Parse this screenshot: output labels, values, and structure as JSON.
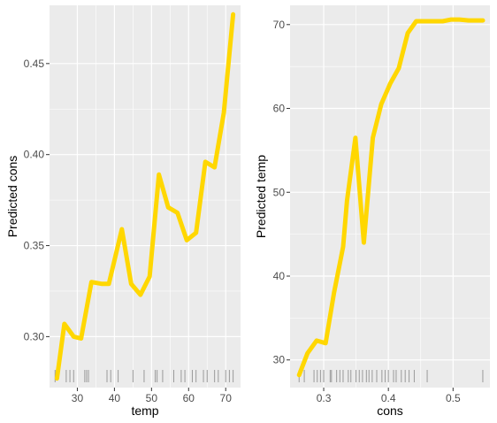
{
  "chart_data": [
    {
      "type": "line",
      "xlabel": "temp",
      "ylabel": "Predicted cons",
      "xlim": [
        22.5,
        74
      ],
      "ylim": [
        0.272,
        0.482
      ],
      "x_ticks": [
        30,
        40,
        50,
        60,
        70
      ],
      "y_ticks": [
        0.3,
        0.35,
        0.4,
        0.45
      ],
      "y_tick_labels": [
        "0.30",
        "0.35",
        "0.40",
        "0.45"
      ],
      "grid": true,
      "line_color": "#FFD700",
      "panel_background": "#EBEBEB",
      "rug_color": "#9a9a9a",
      "series": [
        {
          "x": [
            24.5,
            26.5,
            29,
            31,
            33.8,
            36.5,
            38.5,
            42,
            44.5,
            47,
            49.5,
            52,
            54.5,
            57,
            59.5,
            62,
            64.5,
            67,
            69.5,
            72
          ],
          "y": [
            0.277,
            0.307,
            0.3,
            0.299,
            0.33,
            0.329,
            0.329,
            0.359,
            0.329,
            0.323,
            0.333,
            0.389,
            0.371,
            0.368,
            0.353,
            0.357,
            0.396,
            0.393,
            0.423,
            0.477
          ]
        }
      ],
      "rug": [
        24,
        27,
        28,
        29,
        32,
        32.5,
        33,
        38,
        39,
        41,
        45,
        48,
        51,
        51.5,
        53,
        56,
        58,
        59,
        61,
        62,
        64,
        65,
        67,
        68,
        70,
        71,
        72
      ]
    },
    {
      "type": "line",
      "xlabel": "cons",
      "ylabel": "Predicted temp",
      "xlim": [
        0.248,
        0.557
      ],
      "ylim": [
        26.7,
        72.3
      ],
      "x_ticks": [
        0.3,
        0.4,
        0.5
      ],
      "x_tick_labels": [
        "0.3",
        "0.4",
        "0.5"
      ],
      "y_ticks": [
        30,
        40,
        50,
        60,
        70
      ],
      "grid": true,
      "line_color": "#FFD700",
      "panel_background": "#EBEBEB",
      "rug_color": "#9a9a9a",
      "series": [
        {
          "x": [
            0.262,
            0.275,
            0.289,
            0.303,
            0.316,
            0.33,
            0.336,
            0.349,
            0.362,
            0.376,
            0.389,
            0.403,
            0.416,
            0.43,
            0.443,
            0.457,
            0.47,
            0.484,
            0.497,
            0.51,
            0.524,
            0.546
          ],
          "y": [
            28.2,
            30.8,
            32.3,
            32.0,
            38.0,
            43.5,
            49.0,
            56.5,
            44.0,
            56.5,
            60.5,
            63.0,
            64.8,
            69.0,
            70.4,
            70.4,
            70.4,
            70.4,
            70.6,
            70.6,
            70.5,
            70.5
          ]
        }
      ],
      "rug": [
        0.262,
        0.27,
        0.285,
        0.29,
        0.295,
        0.3,
        0.31,
        0.312,
        0.32,
        0.325,
        0.33,
        0.338,
        0.342,
        0.35,
        0.355,
        0.36,
        0.366,
        0.37,
        0.375,
        0.382,
        0.39,
        0.395,
        0.4,
        0.408,
        0.412,
        0.42,
        0.426,
        0.432,
        0.44,
        0.46,
        0.546
      ]
    }
  ]
}
